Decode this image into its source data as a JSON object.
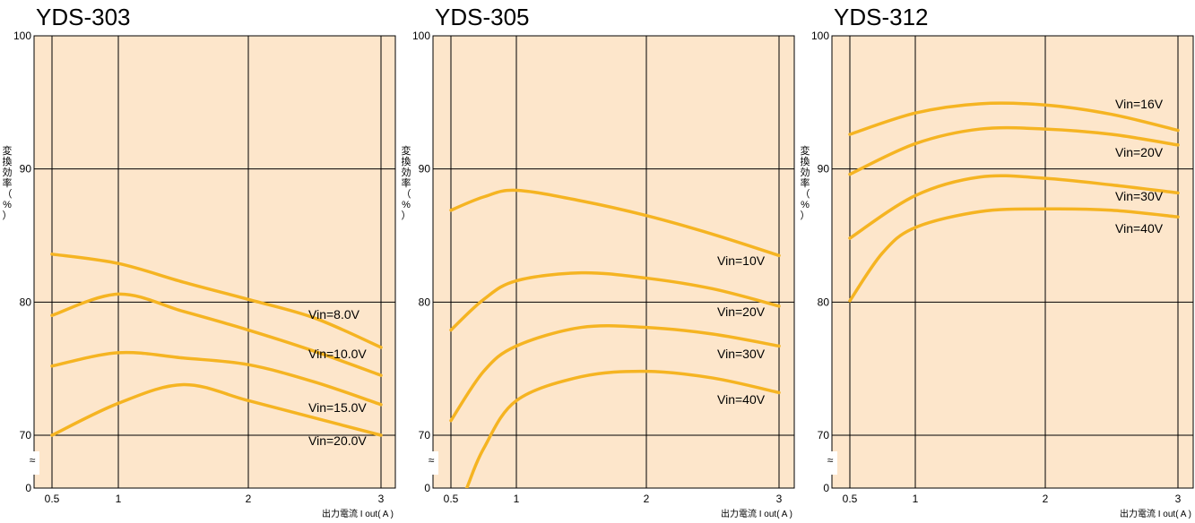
{
  "colors": {
    "plot_bg": "#fde6cb",
    "line": "#f5b422",
    "grid": "#000000"
  },
  "chart_data": [
    {
      "type": "line",
      "title": "YDS-303",
      "xlabel": "出力電流 I out( A )",
      "ylabel": [
        "変",
        "換",
        "効",
        "率",
        "（",
        "%",
        "）"
      ],
      "x_ticks": [
        "0.5",
        "1",
        "2",
        "3"
      ],
      "y_ticks": [
        "70",
        "80",
        "90",
        "100"
      ],
      "y_zero": "0",
      "axis_break": "≈",
      "xlim": [
        0.5,
        3
      ],
      "ylim": [
        70,
        100
      ],
      "grid": true,
      "series": [
        {
          "name": "Vin=8.0V",
          "x": [
            0.5,
            1,
            1.5,
            2,
            2.5,
            3
          ],
          "y": [
            83.6,
            82.9,
            81.5,
            80.2,
            78.8,
            76.6
          ]
        },
        {
          "name": "Vin=10.0V",
          "x": [
            0.5,
            1,
            1.5,
            2,
            2.5,
            3
          ],
          "y": [
            79.0,
            80.6,
            79.3,
            77.9,
            76.3,
            74.5
          ]
        },
        {
          "name": "Vin=15.0V",
          "x": [
            0.5,
            1,
            1.5,
            2,
            2.5,
            3
          ],
          "y": [
            75.2,
            76.2,
            75.8,
            75.3,
            74.0,
            72.3
          ]
        },
        {
          "name": "Vin=20.0V",
          "x": [
            0.5,
            1,
            1.5,
            2,
            2.5,
            3
          ],
          "y": [
            70.0,
            72.4,
            73.8,
            72.6,
            71.3,
            70.0
          ]
        }
      ]
    },
    {
      "type": "line",
      "title": "YDS-305",
      "xlabel": "出力電流 I out( A )",
      "ylabel": [
        "変",
        "換",
        "効",
        "率",
        "（",
        "%",
        "）"
      ],
      "x_ticks": [
        "0.5",
        "1",
        "2",
        "3"
      ],
      "y_ticks": [
        "70",
        "80",
        "90",
        "100"
      ],
      "y_zero": "0",
      "axis_break": "≈",
      "xlim": [
        0.5,
        3
      ],
      "ylim": [
        70,
        100
      ],
      "grid": true,
      "series": [
        {
          "name": "Vin=10V",
          "x": [
            0.5,
            0.75,
            1,
            1.5,
            2,
            2.5,
            3
          ],
          "y": [
            86.9,
            87.9,
            88.4,
            87.6,
            86.5,
            85.1,
            83.5
          ]
        },
        {
          "name": "Vin=20V",
          "x": [
            0.5,
            0.75,
            1,
            1.5,
            2,
            2.5,
            3
          ],
          "y": [
            77.9,
            80.2,
            81.6,
            82.2,
            81.8,
            81.0,
            79.7
          ]
        },
        {
          "name": "Vin=30V",
          "x": [
            0.5,
            0.75,
            1,
            1.5,
            2,
            2.5,
            3
          ],
          "y": [
            71.1,
            74.8,
            76.7,
            78.1,
            78.1,
            77.6,
            76.7
          ]
        },
        {
          "name": "Vin=40V",
          "x": [
            0.5,
            0.62,
            0.75,
            1,
            1.5,
            2,
            2.5,
            3
          ],
          "y": [
            63.0,
            66.0,
            69.0,
            72.6,
            74.4,
            74.8,
            74.3,
            73.2
          ]
        }
      ]
    },
    {
      "type": "line",
      "title": "YDS-312",
      "xlabel": "出力電流 I out( A )",
      "ylabel": [
        "変",
        "換",
        "効",
        "率",
        "（",
        "%",
        "）"
      ],
      "x_ticks": [
        "0.5",
        "1",
        "2",
        "3"
      ],
      "y_ticks": [
        "70",
        "80",
        "90",
        "100"
      ],
      "y_zero": "0",
      "axis_break": "≈",
      "xlim": [
        0.5,
        3
      ],
      "ylim": [
        70,
        100
      ],
      "grid": true,
      "series": [
        {
          "name": "Vin=16V",
          "x": [
            0.5,
            1,
            1.5,
            2,
            2.5,
            3
          ],
          "y": [
            92.6,
            94.2,
            94.9,
            94.8,
            94.1,
            92.9
          ]
        },
        {
          "name": "Vin=20V",
          "x": [
            0.5,
            1,
            1.5,
            2,
            2.5,
            3
          ],
          "y": [
            89.6,
            91.9,
            93.0,
            93.0,
            92.6,
            91.8
          ]
        },
        {
          "name": "Vin=30V",
          "x": [
            0.5,
            1,
            1.5,
            2,
            2.5,
            3
          ],
          "y": [
            84.8,
            88.0,
            89.4,
            89.3,
            88.8,
            88.2
          ]
        },
        {
          "name": "Vin=40V",
          "x": [
            0.5,
            0.75,
            1,
            1.5,
            2,
            2.5,
            3
          ],
          "y": [
            80.1,
            83.7,
            85.6,
            86.8,
            87.0,
            86.9,
            86.4
          ]
        }
      ]
    }
  ]
}
